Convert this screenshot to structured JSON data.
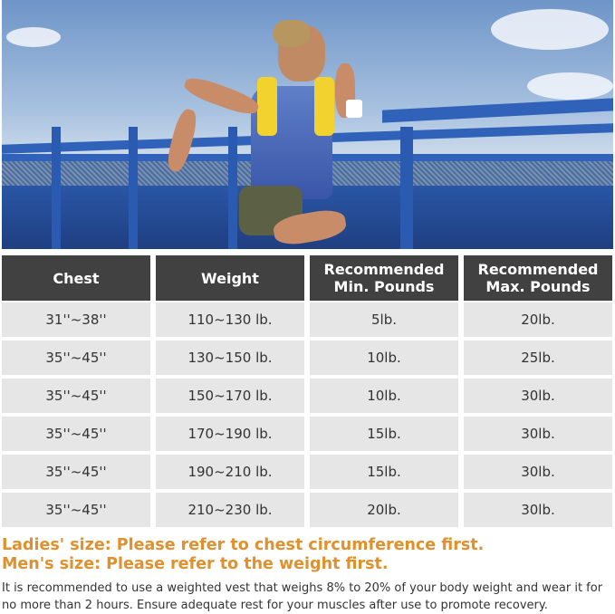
{
  "table": {
    "headers": [
      "Chest",
      "Weight",
      "Recommended Min. Pounds",
      "Recommended Max. Pounds"
    ],
    "rows": [
      [
        "31''~38''",
        "110~130 lb.",
        "5lb.",
        "20lb."
      ],
      [
        "35''~45''",
        "130~150 lb.",
        "10lb.",
        "25lb."
      ],
      [
        "35''~45''",
        "150~170 lb.",
        "10lb.",
        "30lb."
      ],
      [
        "35''~45''",
        "170~190 lb.",
        "15lb.",
        "30lb."
      ],
      [
        "35''~45''",
        "190~210 lb.",
        "15lb.",
        "30lb."
      ],
      [
        "35''~45''",
        "210~230 lb.",
        "20lb.",
        "30lb."
      ]
    ]
  },
  "notes": {
    "ladies": "Ladies' size: Please refer to chest circumference first.",
    "mens": "Men's size: Please refer to the weight first.",
    "recommendation": "It is recommended to use a weighted vest that weighs 8% to 20% of your body weight and wear it for no more than 2 hours. Ensure adequate rest for your muscles after use to promote recovery."
  },
  "colors": {
    "header_bg": "#414141",
    "cell_bg": "#e6e6e6",
    "accent": "#e0912e",
    "vest": "#f2d22e"
  }
}
